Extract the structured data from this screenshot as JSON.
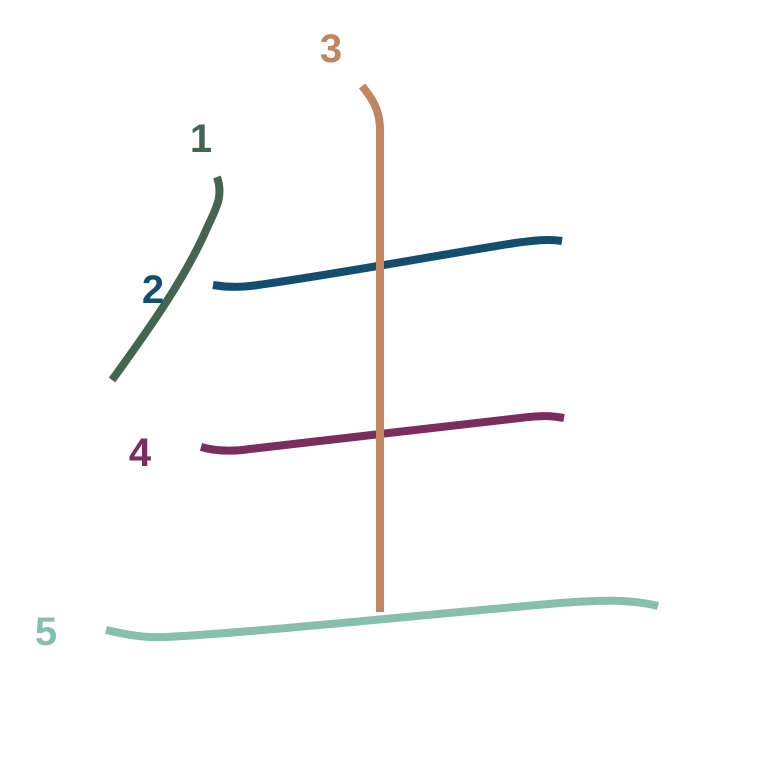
{
  "diagram": {
    "character": "生",
    "strokes": [
      {
        "order": "1",
        "color": "#44654f"
      },
      {
        "order": "2",
        "color": "#134e6f"
      },
      {
        "order": "3",
        "color": "#c08660"
      },
      {
        "order": "4",
        "color": "#7b2d5d"
      },
      {
        "order": "5",
        "color": "#88bfab"
      }
    ]
  }
}
